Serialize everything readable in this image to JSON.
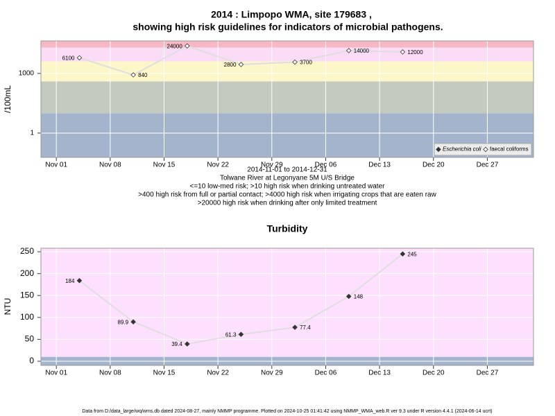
{
  "chart_data": [
    {
      "type": "line",
      "log_y": true,
      "grid": true,
      "legend": "bottom-right",
      "title": "2014 : Limpopo WMA, site 179683 ,",
      "subtitle": "showing high risk guidelines for indicators of microbial pathogens.",
      "y_label": "/100mL",
      "x": [
        "2014-11-04",
        "2014-11-11",
        "2014-11-18",
        "2014-11-25",
        "2014-12-02",
        "2014-12-09",
        "2014-12-16"
      ],
      "series": [
        {
          "name": "Escherichia coli",
          "color": "#333333",
          "filled": true,
          "values": [
            null,
            null,
            null,
            null,
            null,
            null,
            null
          ]
        },
        {
          "name": "faecal coliforms",
          "color": "#333333",
          "filled": false,
          "values": [
            6100,
            840,
            24000,
            2800,
            3700,
            14000,
            12000
          ]
        }
      ],
      "xlim": [
        "2014-10-30",
        "2015-01-02"
      ],
      "xticks": [
        {
          "value": "2014-11-01",
          "label": "Nov 01"
        },
        {
          "value": "2014-11-08",
          "label": "Nov 08"
        },
        {
          "value": "2014-11-15",
          "label": "Nov 15"
        },
        {
          "value": "2014-11-22",
          "label": "Nov 22"
        },
        {
          "value": "2014-11-29",
          "label": "Nov 29"
        },
        {
          "value": "2014-12-06",
          "label": "Dec 06"
        },
        {
          "value": "2014-12-13",
          "label": "Dec 13"
        },
        {
          "value": "2014-12-20",
          "label": "Dec 20"
        },
        {
          "value": "2014-12-27",
          "label": "Dec 27"
        }
      ],
      "ylim": [
        0.06,
        43000
      ],
      "yticks": [
        1,
        1000
      ],
      "thresholds": [
        10,
        400,
        4000,
        20000
      ],
      "band_colors": [
        "#a3b4cc",
        "#c3cbbf",
        "#fdf6c8",
        "#fbdcf7",
        "#f6b8c4"
      ],
      "annotations": [
        "2014-11-01 to 2014-12-31",
        "Tolwane River at Legonyane 5M U/S Bridge",
        "<=10 low-med risk; >10 high risk when drinking untreated water",
        ">400 high risk from full or partial contact; >4000 high risk when irrigating crops that are eaten raw",
        ">20000 high risk when drinking after only limited treatment"
      ]
    },
    {
      "type": "line",
      "log_y": false,
      "grid": true,
      "title": "Turbidity",
      "y_label": "NTU",
      "x": [
        "2014-11-04",
        "2014-11-11",
        "2014-11-18",
        "2014-11-25",
        "2014-12-02",
        "2014-12-09",
        "2014-12-16"
      ],
      "series": [
        {
          "name": "Turbidity",
          "color": "#333333",
          "filled": true,
          "values": [
            184,
            89.9,
            39.4,
            61.3,
            77.4,
            148,
            245
          ]
        }
      ],
      "xlim": [
        "2014-10-30",
        "2015-01-02"
      ],
      "xticks": [
        {
          "value": "2014-11-01",
          "label": "Nov 01"
        },
        {
          "value": "2014-11-08",
          "label": "Nov 08"
        },
        {
          "value": "2014-11-15",
          "label": "Nov 15"
        },
        {
          "value": "2014-11-22",
          "label": "Nov 22"
        },
        {
          "value": "2014-11-29",
          "label": "Nov 29"
        },
        {
          "value": "2014-12-06",
          "label": "Dec 06"
        },
        {
          "value": "2014-12-13",
          "label": "Dec 13"
        },
        {
          "value": "2014-12-20",
          "label": "Dec 20"
        },
        {
          "value": "2014-12-27",
          "label": "Dec 27"
        }
      ],
      "ylim": [
        -9.5,
        258
      ],
      "yticks": [
        0,
        50,
        100,
        150,
        200,
        250
      ],
      "thresholds": [
        10
      ],
      "band_colors": [
        "#a3b4cc",
        "#fde0fd"
      ]
    }
  ],
  "footer": "Data from D:/data_large/wq/wms.db dated 2024-08-27, mainly NMMP programme. Plotted on 2024-10-25 01:41:42 using NMMP_WMA_web.R ver 9.3 under R version 4.4.1 (2024-06-14 ucrt)"
}
